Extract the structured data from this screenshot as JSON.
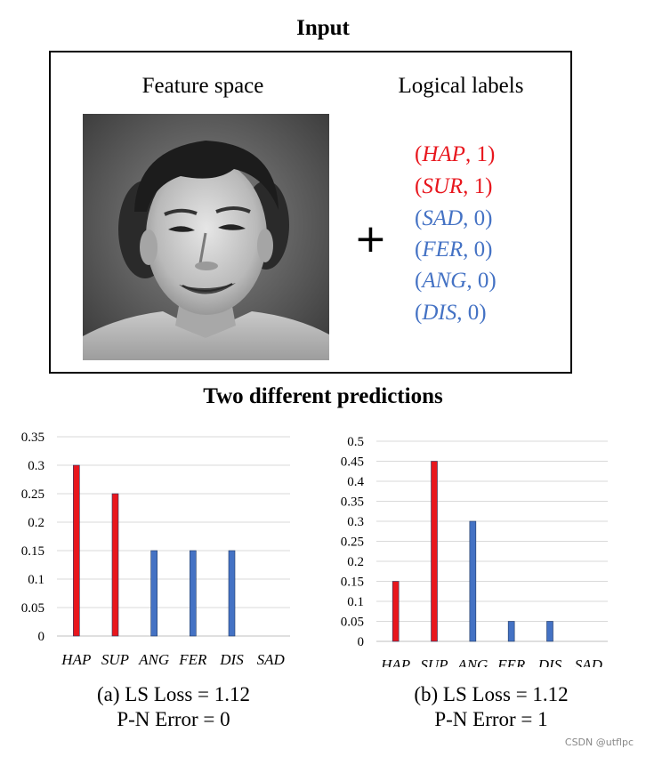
{
  "input": {
    "title": "Input",
    "feature_space_label": "Feature space",
    "logical_labels_label": "Logical labels",
    "plus": "+",
    "labels": [
      {
        "name": "HAP",
        "value": "1",
        "color": "#e8161d"
      },
      {
        "name": "SUR",
        "value": "1",
        "color": "#e8161d"
      },
      {
        "name": "SAD",
        "value": "0",
        "color": "#4472c4"
      },
      {
        "name": "FER",
        "value": "0",
        "color": "#4472c4"
      },
      {
        "name": "ANG",
        "value": "0",
        "color": "#4472c4"
      },
      {
        "name": "DIS",
        "value": "0",
        "color": "#4472c4"
      }
    ]
  },
  "predictions": {
    "title": "Two different predictions"
  },
  "chart_data": [
    {
      "type": "bar",
      "categories": [
        "HAP",
        "SUP",
        "ANG",
        "FER",
        "DIS",
        "SAD"
      ],
      "values": [
        0.3,
        0.25,
        0.15,
        0.15,
        0.15,
        0
      ],
      "colors": [
        "#e8161d",
        "#e8161d",
        "#4472c4",
        "#4472c4",
        "#4472c4",
        "#4472c4"
      ],
      "ylim": [
        0,
        0.35
      ],
      "yticks": [
        "0",
        "0.05",
        "0.1",
        "0.15",
        "0.2",
        "0.25",
        "0.3",
        "0.35"
      ],
      "grid": true,
      "caption": [
        "(a) LS Loss = 1.12",
        "P-N Error = 0"
      ]
    },
    {
      "type": "bar",
      "categories": [
        "HAP",
        "SUP",
        "ANG",
        "FER",
        "DIS",
        "SAD"
      ],
      "values": [
        0.15,
        0.45,
        0.3,
        0.05,
        0.05,
        0
      ],
      "colors": [
        "#e8161d",
        "#e8161d",
        "#4472c4",
        "#4472c4",
        "#4472c4",
        "#4472c4"
      ],
      "ylim": [
        0,
        0.5
      ],
      "yticks": [
        "0",
        "0.05",
        "0.1",
        "0.15",
        "0.2",
        "0.25",
        "0.3",
        "0.35",
        "0.4",
        "0.45",
        "0.5"
      ],
      "grid": true,
      "caption": [
        "(b) LS Loss = 1.12",
        "P-N Error = 1"
      ]
    }
  ],
  "watermark": "CSDN @utflpc"
}
